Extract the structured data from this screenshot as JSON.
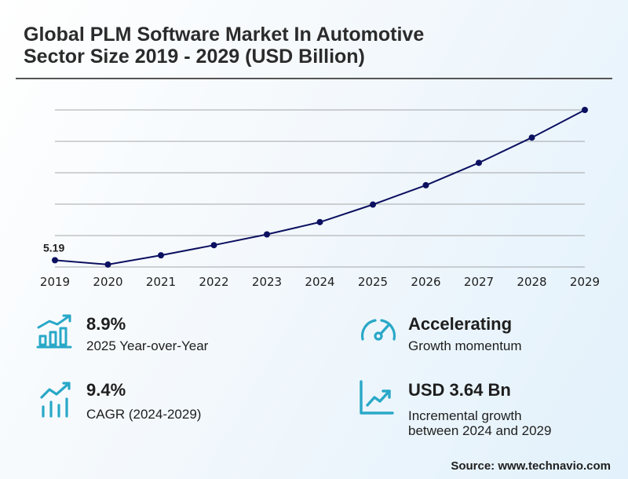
{
  "title_line1": "Global PLM Software Market In Automotive",
  "title_line2": "Sector Size 2019 - 2029 (USD Billion)",
  "chart_data": {
    "type": "line",
    "title": "Global PLM Software Market In Automotive Sector Size 2019 - 2029 (USD Billion)",
    "categories": [
      "2019",
      "2020",
      "2021",
      "2022",
      "2023",
      "2024",
      "2025",
      "2026",
      "2027",
      "2028",
      "2029"
    ],
    "values": [
      5.19,
      5.05,
      5.35,
      5.68,
      6.03,
      6.43,
      7.0,
      7.63,
      8.36,
      9.18,
      10.08
    ],
    "data_labels": [
      {
        "index": 0,
        "text": "5.19"
      }
    ],
    "ylim": [
      4.97,
      10.08
    ],
    "grid": true,
    "line_color": "#0b1060"
  },
  "stats": [
    {
      "value": "8.9%",
      "label": "2025 Year-over-Year",
      "icon": "bar-growth-icon"
    },
    {
      "value": "Accelerating",
      "label": "Growth momentum",
      "icon": "gauge-icon"
    },
    {
      "value": "9.4%",
      "label": "CAGR (2024-2029)",
      "icon": "trend-bars-icon"
    },
    {
      "value": "USD 3.64 Bn",
      "label_line1": "Incremental growth",
      "label_line2": "between 2024 and 2029",
      "icon": "trend-chart-icon"
    }
  ],
  "accent_color": "#29a8c7",
  "source": "Source: www.technavio.com"
}
